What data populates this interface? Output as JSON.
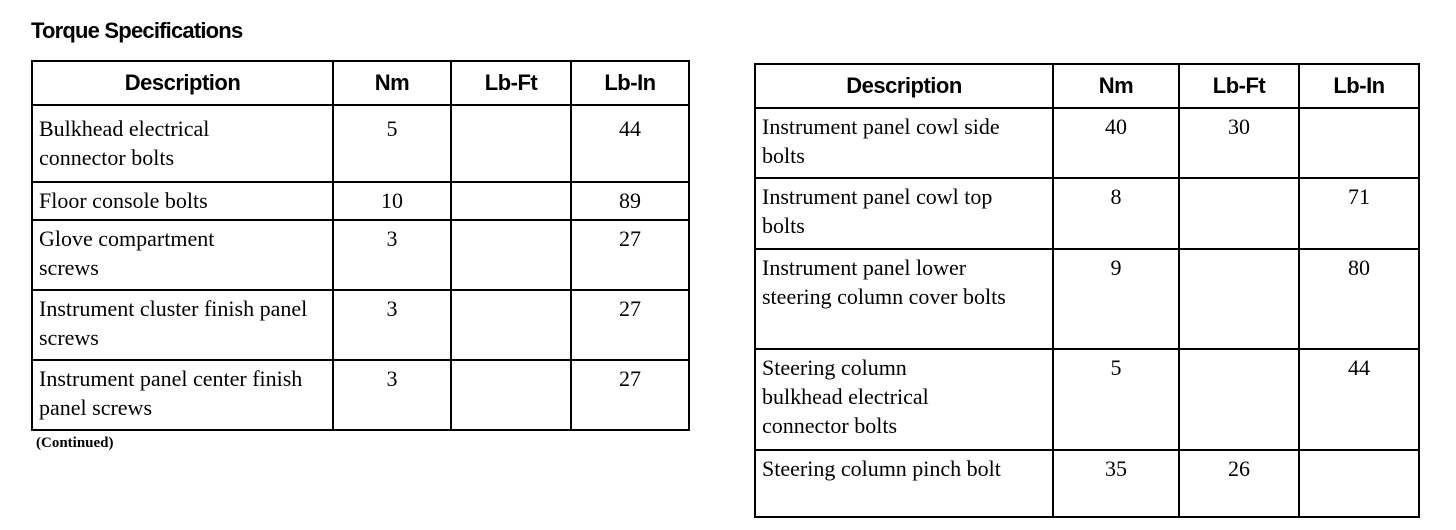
{
  "title": "Torque Specifications",
  "columns": [
    "Description",
    "Nm",
    "Lb-Ft",
    "Lb-In"
  ],
  "left_table": {
    "rows": [
      {
        "description": "Bulkhead electrical connector bolts",
        "nm": "5",
        "lbft": "",
        "lbin": "44"
      },
      {
        "description": "Floor console bolts",
        "nm": "10",
        "lbft": "",
        "lbin": "89"
      },
      {
        "description": "Glove compartment screws",
        "nm": "3",
        "lbft": "",
        "lbin": "27"
      },
      {
        "description": "Instrument cluster finish panel screws",
        "nm": "3",
        "lbft": "",
        "lbin": "27"
      },
      {
        "description": "Instrument panel center finish panel screws",
        "nm": "3",
        "lbft": "",
        "lbin": "27"
      }
    ],
    "note": "(Continued)"
  },
  "right_table": {
    "rows": [
      {
        "description": "Instrument panel cowl side bolts",
        "nm": "40",
        "lbft": "30",
        "lbin": ""
      },
      {
        "description": "Instrument panel cowl top bolts",
        "nm": "8",
        "lbft": "",
        "lbin": "71"
      },
      {
        "description": "Instrument panel lower steering column cover bolts",
        "nm": "9",
        "lbft": "",
        "lbin": "80"
      },
      {
        "description": "Steering column bulkhead electrical connector bolts",
        "nm": "5",
        "lbft": "",
        "lbin": "44"
      },
      {
        "description": "Steering column pinch bolt",
        "nm": "35",
        "lbft": "26",
        "lbin": ""
      }
    ]
  }
}
